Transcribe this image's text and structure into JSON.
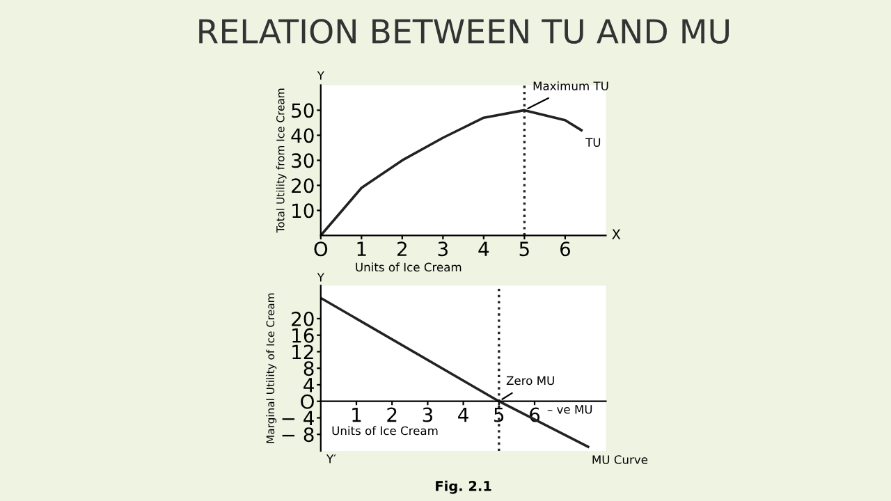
{
  "chart_data": [
    {
      "type": "line",
      "title": "RELATION BETWEEN TU AND MU",
      "ylabel": "Total Utility from Ice Cream",
      "xlabel": "Units of Ice Cream",
      "series": [
        {
          "name": "TU",
          "color": "#222222",
          "x": [
            0,
            1,
            2,
            3,
            4,
            5,
            6,
            6.4
          ],
          "values": [
            0,
            19,
            30,
            39,
            47,
            50,
            46,
            42
          ]
        }
      ],
      "xlim": [
        0,
        7
      ],
      "ylim": [
        0,
        60
      ],
      "xticks": [
        {
          "value": 0,
          "label": "O"
        },
        1,
        2,
        3,
        4,
        5,
        6
      ],
      "yticks": [
        10,
        20,
        30,
        40,
        50
      ],
      "ref_lines": [
        {
          "axis": "x",
          "value": 5,
          "line_style": "dotted",
          "color": "#222222"
        }
      ],
      "annotations": [
        {
          "text": "Maximum TU",
          "x": 5,
          "y": 50
        },
        "Y",
        "X"
      ],
      "grid": false,
      "legend": false,
      "marker": "none",
      "line_style": "solid"
    },
    {
      "type": "line",
      "ylabel": "Marginal Utility of Ice Cream",
      "xlabel": "Units of Ice Cream",
      "series": [
        {
          "name": "MU Curve",
          "color": "#222222",
          "x": [
            0,
            5,
            7.5
          ],
          "values": [
            25,
            0,
            -11
          ]
        }
      ],
      "xlim": [
        0,
        8
      ],
      "ylim": [
        -12,
        28
      ],
      "xticks": [
        1,
        2,
        3,
        4,
        5,
        6
      ],
      "yticks": [
        {
          "value": -8,
          "label": "− 8"
        },
        {
          "value": -4,
          "label": "− 4"
        },
        {
          "value": 0,
          "label": "O"
        },
        4,
        8,
        12,
        16,
        20
      ],
      "ref_lines": [
        {
          "axis": "x",
          "value": 5,
          "line_style": "dotted",
          "color": "#222222"
        }
      ],
      "annotations": [
        {
          "text": "Zero MU",
          "x": 5,
          "y": 0
        },
        "– ve MU",
        "Fig. 2.1",
        "Y",
        "Y′"
      ],
      "grid": false,
      "legend": false,
      "marker": "none",
      "line_style": "solid"
    }
  ]
}
